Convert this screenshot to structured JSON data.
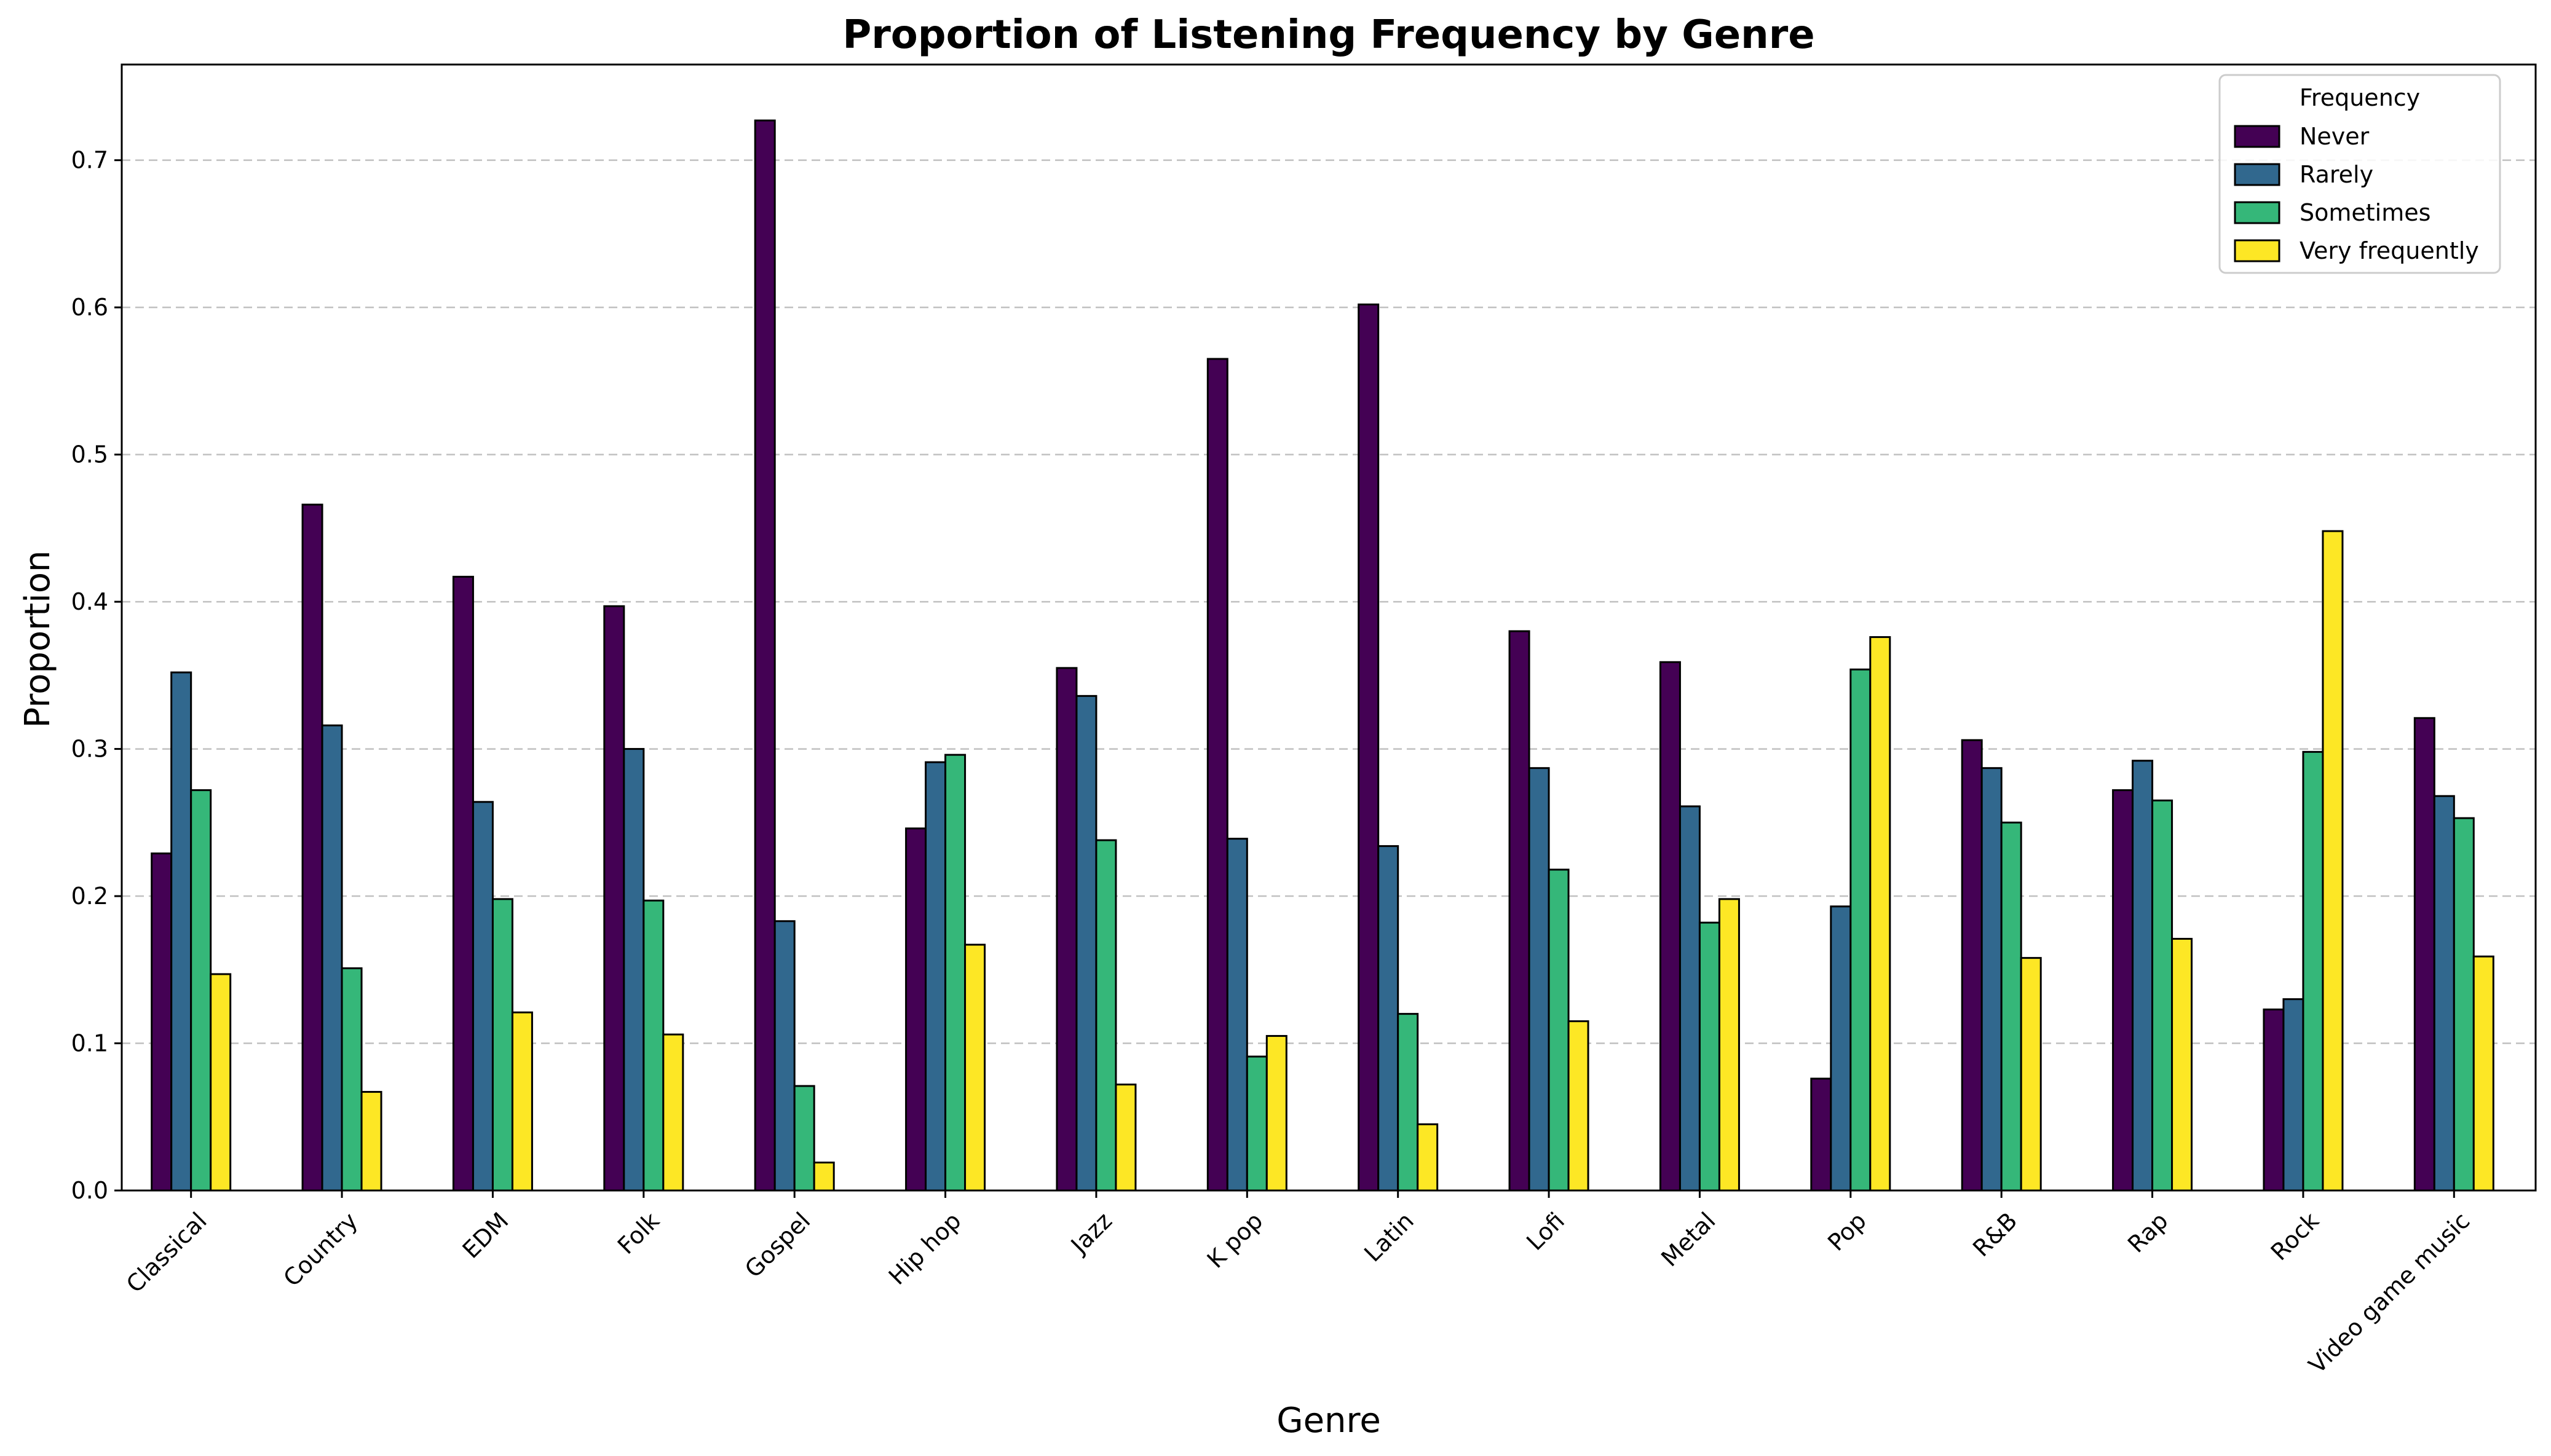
{
  "chart_data": {
    "type": "bar",
    "title": "Proportion of Listening Frequency by Genre",
    "xlabel": "Genre",
    "ylabel": "Proportion",
    "categories": [
      "Classical",
      "Country",
      "EDM",
      "Folk",
      "Gospel",
      "Hip hop",
      "Jazz",
      "K pop",
      "Latin",
      "Lofi",
      "Metal",
      "Pop",
      "R&B",
      "Rap",
      "Rock",
      "Video game music"
    ],
    "series": [
      {
        "name": "Never",
        "color": "#440154",
        "values": [
          0.229,
          0.466,
          0.417,
          0.397,
          0.727,
          0.246,
          0.355,
          0.565,
          0.602,
          0.38,
          0.359,
          0.076,
          0.306,
          0.272,
          0.123,
          0.321
        ]
      },
      {
        "name": "Rarely",
        "color": "#31688e",
        "values": [
          0.352,
          0.316,
          0.264,
          0.3,
          0.183,
          0.291,
          0.336,
          0.239,
          0.234,
          0.287,
          0.261,
          0.193,
          0.287,
          0.292,
          0.13,
          0.268
        ]
      },
      {
        "name": "Sometimes",
        "color": "#35b779",
        "values": [
          0.272,
          0.151,
          0.198,
          0.197,
          0.071,
          0.296,
          0.238,
          0.091,
          0.12,
          0.218,
          0.182,
          0.354,
          0.25,
          0.265,
          0.298,
          0.253
        ]
      },
      {
        "name": "Very frequently",
        "color": "#fde725",
        "values": [
          0.147,
          0.067,
          0.121,
          0.106,
          0.019,
          0.167,
          0.072,
          0.105,
          0.045,
          0.115,
          0.198,
          0.376,
          0.158,
          0.171,
          0.448,
          0.159
        ]
      }
    ],
    "ylim": [
      0,
      0.765
    ],
    "yticks": [
      "0.0",
      "0.1",
      "0.2",
      "0.3",
      "0.4",
      "0.5",
      "0.6",
      "0.7"
    ],
    "grid": "horizontal dashed",
    "legend": {
      "title": "Frequency",
      "position": "top-right"
    }
  }
}
